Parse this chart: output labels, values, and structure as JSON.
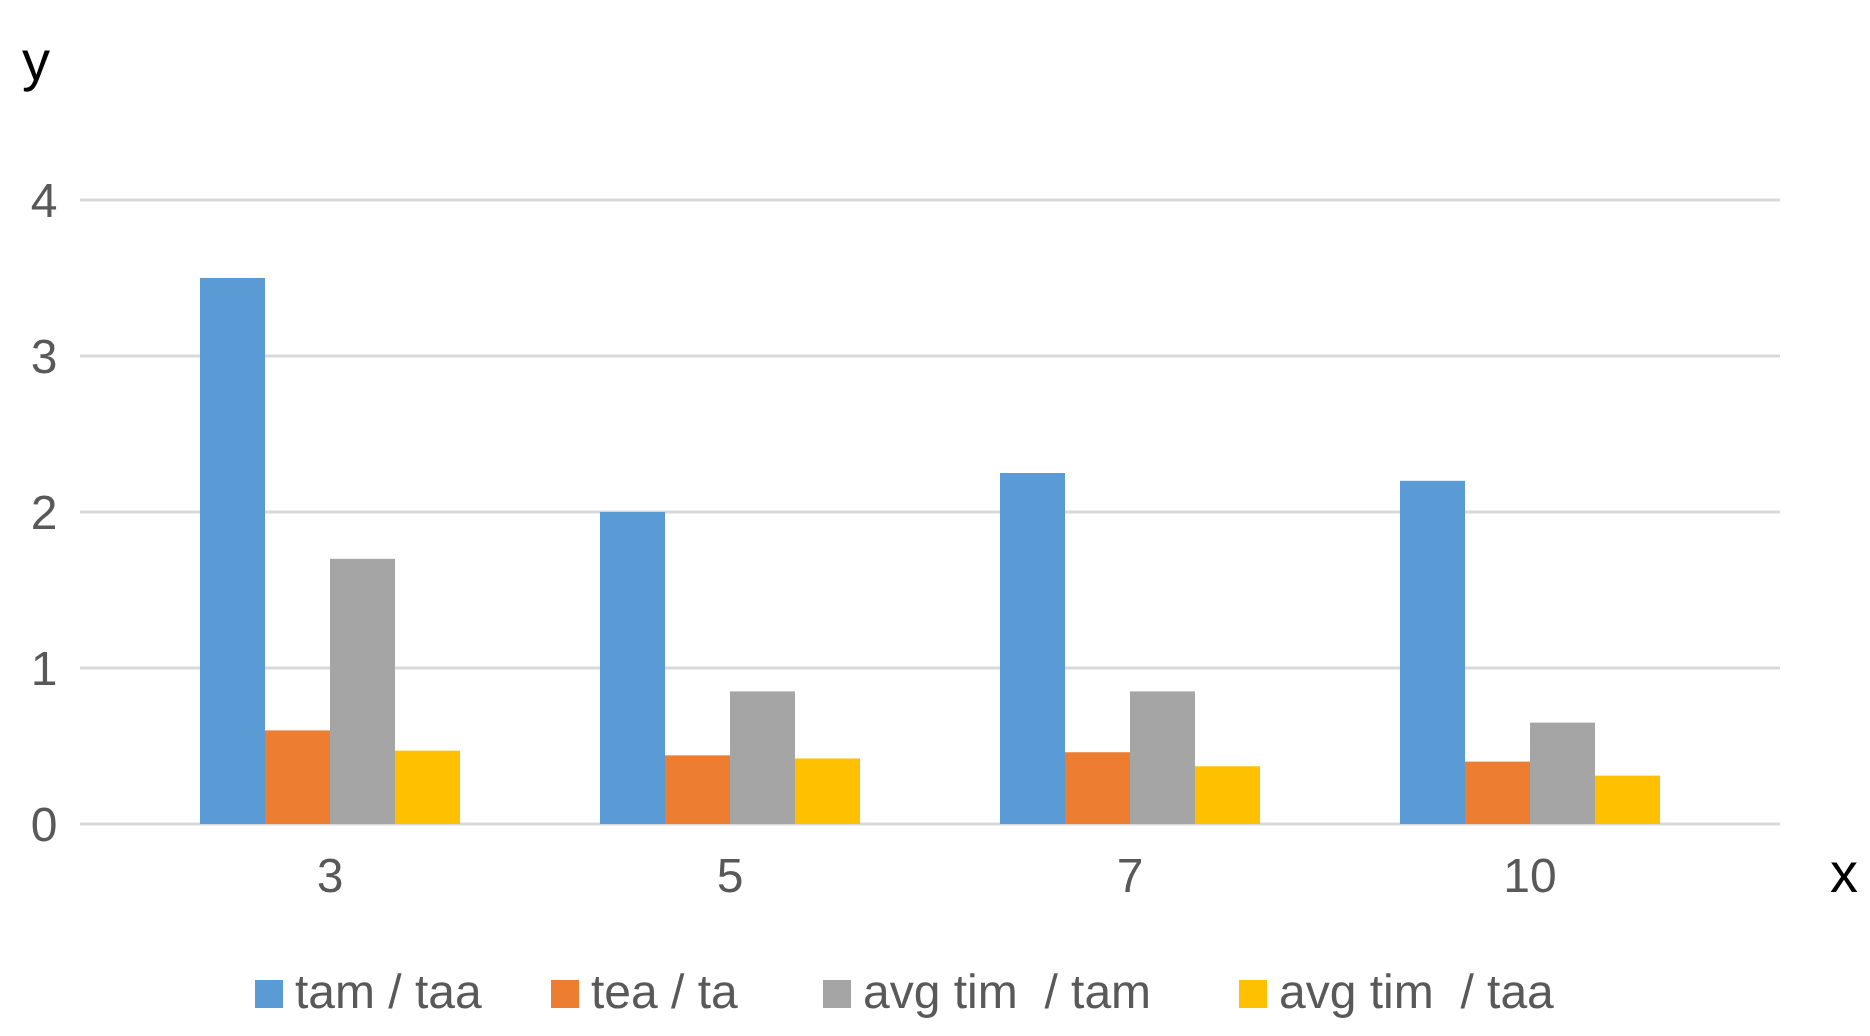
{
  "chart_data": {
    "type": "bar",
    "xlabel": "x",
    "ylabel": "y",
    "categories": [
      "3",
      "5",
      "7",
      "10"
    ],
    "series": [
      {
        "name": "tam / taa",
        "color": "#5b9bd5",
        "values": [
          3.5,
          2.0,
          2.25,
          2.2
        ]
      },
      {
        "name": "tea / ta",
        "color": "#ed7d31",
        "values": [
          0.6,
          0.44,
          0.46,
          0.4
        ]
      },
      {
        "name": "avg tim  / tam",
        "color": "#a5a5a5",
        "values": [
          1.7,
          0.85,
          0.85,
          0.65
        ]
      },
      {
        "name": "avg tim  / taa",
        "color": "#ffc000",
        "values": [
          0.47,
          0.42,
          0.37,
          0.31
        ]
      }
    ],
    "ylim": [
      0,
      4
    ],
    "yticks": [
      0,
      1,
      2,
      3,
      4
    ],
    "grid": "y",
    "legend": "bottom"
  }
}
